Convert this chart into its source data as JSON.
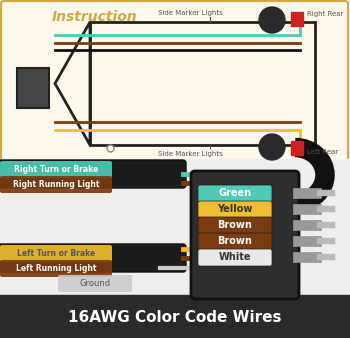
{
  "title": "16AWG Color Code Wires",
  "instruction_label": "Instruction",
  "bg_color": "#f0f0f0",
  "top_bg_color": "#fef9ec",
  "top_border_color": "#d4a843",
  "bottom_bg_color": "#2a2a2a",
  "title_color": "#ffffff",
  "teal": "#4ecbb4",
  "yellow": "#f0bc30",
  "brown": "#7a3b10",
  "dark_brown": "#5c2a08",
  "black": "#1a1a1a",
  "gray": "#aaaaaa",
  "red": "#cc2222",
  "connector_labels": [
    "Green",
    "Yellow",
    "Brown",
    "Brown",
    "White"
  ],
  "connector_colors": [
    "#4ecbb4",
    "#f0bc30",
    "#7a3b10",
    "#7a3b10",
    "#e8e8e8"
  ],
  "label_tags": [
    {
      "text": "Right Turn or Brake",
      "color": "#4ecbb4",
      "text_color": "#ffffff"
    },
    {
      "text": "Right Running Light",
      "color": "#7a3b10",
      "text_color": "#ffffff"
    },
    {
      "text": "Left Turn or Brake",
      "color": "#f0bc30",
      "text_color": "#555555"
    },
    {
      "text": "Left Running Light",
      "color": "#7a3b10",
      "text_color": "#ffffff"
    }
  ]
}
